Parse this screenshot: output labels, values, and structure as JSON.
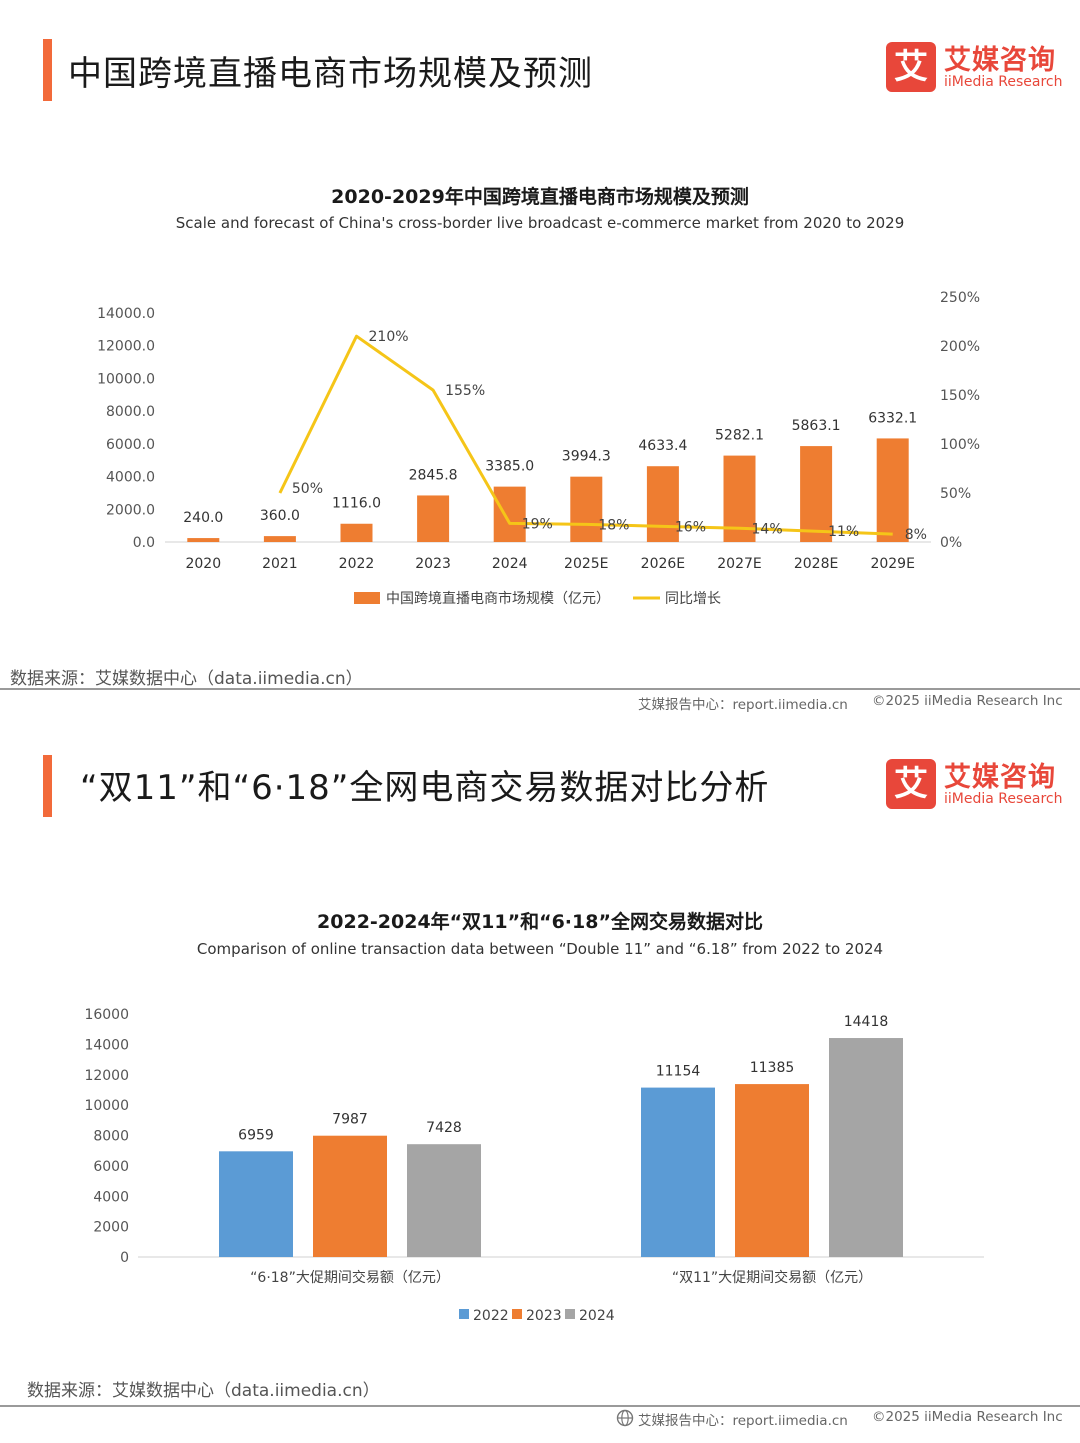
{
  "colors": {
    "accent": "#f26a3a",
    "brand_red": "#e8473a",
    "bar_orange": "#ee7d31",
    "line_yellow": "#f5c518",
    "bar_blue": "#5b9bd5",
    "bar_gray": "#a5a5a5"
  },
  "logo": {
    "mark": "艾",
    "name_cn": "艾媒咨询",
    "name_en": "iiMedia Research"
  },
  "panel1": {
    "heading": "中国跨境直播电商市场规模及预测",
    "source": "数据来源：艾媒数据中心（data.iimedia.cn）",
    "footer_report": "艾媒报告中心：report.iimedia.cn",
    "footer_copyright": "©2025  iiMedia Research  Inc"
  },
  "panel2": {
    "heading": "“双11”和“6·18”全网电商交易数据对比分析",
    "source": "数据来源：艾媒数据中心（data.iimedia.cn）",
    "footer_report": "艾媒报告中心：report.iimedia.cn",
    "footer_copyright": "©2025  iiMedia Research  Inc",
    "footer_icon": "globe-icon"
  },
  "chart_data": [
    {
      "type": "bar",
      "title": "2020-2029年中国跨境直播电商市场规模及预测",
      "subtitle": "Scale and forecast of China's cross-border live broadcast e-commerce market from 2020 to 2029",
      "categories": [
        "2020",
        "2021",
        "2022",
        "2023",
        "2024",
        "2025E",
        "2026E",
        "2027E",
        "2028E",
        "2029E"
      ],
      "series": [
        {
          "name": "中国跨境直播电商市场规模（亿元）",
          "type": "bar",
          "axis": "left",
          "values": [
            240.0,
            360.0,
            1116.0,
            2845.8,
            3385.0,
            3994.3,
            4633.4,
            5282.1,
            5863.1,
            6332.1
          ],
          "labels": [
            "240.0",
            "360.0",
            "1116.0",
            "2845.8",
            "3385.0",
            "3994.3",
            "4633.4",
            "5282.1",
            "5863.1",
            "6332.1"
          ]
        },
        {
          "name": "同比增长",
          "type": "line",
          "axis": "right",
          "values": [
            null,
            50,
            210,
            155,
            19,
            18,
            16,
            14,
            11,
            8
          ],
          "labels": [
            "",
            "50%",
            "210%",
            "155%",
            "19%",
            "18%",
            "16%",
            "14%",
            "11%",
            "8%"
          ]
        }
      ],
      "ylim": [
        0,
        14000
      ],
      "yticks": [
        "0.0",
        "2000.0",
        "4000.0",
        "6000.0",
        "8000.0",
        "10000.0",
        "12000.0",
        "14000.0"
      ],
      "y2lim": [
        0,
        250
      ],
      "y2ticks": [
        "0%",
        "50%",
        "100%",
        "150%",
        "200%",
        "250%"
      ],
      "legend": "bottom",
      "grid": false
    },
    {
      "type": "bar",
      "title": "2022-2024年“双11”和“6·18”全网交易数据对比",
      "subtitle": "Comparison of online transaction data between “Double 11” and “6.18” from 2022 to 2024",
      "categories": [
        "“6·18”大促期间交易额（亿元）",
        "“双11”大促期间交易额（亿元）"
      ],
      "series": [
        {
          "name": "2022",
          "values": [
            6959,
            11154
          ]
        },
        {
          "name": "2023",
          "values": [
            7987,
            11385
          ]
        },
        {
          "name": "2024",
          "values": [
            7428,
            14418
          ]
        }
      ],
      "ylim": [
        0,
        16000
      ],
      "yticks": [
        "0",
        "2000",
        "4000",
        "6000",
        "8000",
        "10000",
        "12000",
        "14000",
        "16000"
      ],
      "legend": "bottom",
      "grid": false
    }
  ]
}
